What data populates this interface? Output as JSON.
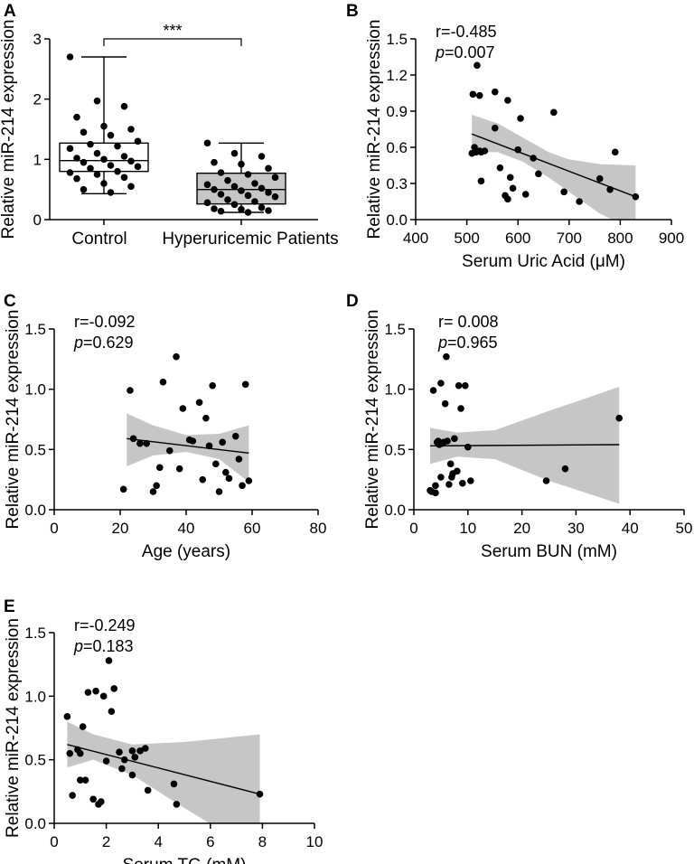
{
  "chart_data": [
    {
      "panel": "A",
      "type": "box",
      "categories": [
        "Control",
        "Hyperuricemic Patients"
      ],
      "ylabel": "Relative miR-214 expression",
      "ylim": [
        0,
        3
      ],
      "yticks": [
        0,
        1,
        2,
        3
      ],
      "significance": "***",
      "boxes": [
        {
          "min": 0.43,
          "q1": 0.8,
          "median": 0.98,
          "q3": 1.27,
          "max": 2.7
        },
        {
          "min": 0.12,
          "q1": 0.26,
          "median": 0.5,
          "q3": 0.77,
          "max": 1.27
        }
      ],
      "points": [
        [
          2.7,
          1.97,
          1.88,
          1.7,
          1.55,
          1.5,
          1.45,
          1.4,
          1.3,
          1.25,
          1.22,
          1.18,
          1.1,
          1.05,
          1.02,
          1.0,
          0.97,
          0.95,
          0.9,
          0.88,
          0.85,
          0.8,
          0.78,
          0.75,
          0.7,
          0.68,
          0.6,
          0.55,
          0.5,
          0.45
        ],
        [
          1.27,
          1.1,
          1.05,
          0.95,
          0.92,
          0.85,
          0.78,
          0.75,
          0.7,
          0.65,
          0.6,
          0.58,
          0.55,
          0.52,
          0.5,
          0.48,
          0.45,
          0.42,
          0.4,
          0.38,
          0.33,
          0.3,
          0.28,
          0.25,
          0.2,
          0.18,
          0.17,
          0.15,
          0.14,
          0.12
        ]
      ]
    },
    {
      "panel": "B",
      "type": "scatter",
      "xlabel": "Serum Uric Acid (μM)",
      "ylabel": "Relative miR-214 expression",
      "xlim": [
        400,
        900
      ],
      "ylim": [
        0,
        1.5
      ],
      "xticks": [
        400,
        500,
        600,
        700,
        800,
        900
      ],
      "yticks": [
        0.0,
        0.3,
        0.6,
        0.9,
        1.2,
        1.5
      ],
      "ytick_labels": [
        "0.0",
        "0.3",
        "0.6",
        "0.9",
        "1.2",
        "1.5"
      ],
      "r_text": "r=-0.485",
      "p_label": "p",
      "p_value": "=0.007",
      "fit": {
        "x": [
          510,
          830
        ],
        "y": [
          0.71,
          0.19
        ]
      },
      "band_upper": [
        [
          510,
          0.87
        ],
        [
          560,
          0.8
        ],
        [
          610,
          0.68
        ],
        [
          660,
          0.56
        ],
        [
          700,
          0.5
        ],
        [
          760,
          0.46
        ],
        [
          830,
          0.45
        ]
      ],
      "band_lower": [
        [
          510,
          0.56
        ],
        [
          560,
          0.56
        ],
        [
          610,
          0.48
        ],
        [
          660,
          0.35
        ],
        [
          700,
          0.23
        ],
        [
          760,
          0.05
        ],
        [
          830,
          -0.09
        ]
      ],
      "x": [
        520,
        512,
        525,
        555,
        580,
        515,
        525,
        518,
        528,
        605,
        528,
        510,
        555,
        565,
        615,
        585,
        630,
        670,
        640,
        535,
        575,
        600,
        720,
        690,
        580,
        590,
        780,
        790,
        760,
        830
      ],
      "y": [
        1.28,
        1.04,
        1.03,
        1.06,
        0.99,
        0.6,
        0.57,
        0.56,
        0.56,
        0.84,
        0.32,
        0.55,
        0.76,
        0.43,
        0.21,
        0.35,
        0.51,
        0.89,
        0.38,
        0.57,
        0.2,
        0.58,
        0.15,
        0.23,
        0.17,
        0.26,
        0.25,
        0.56,
        0.34,
        0.19
      ]
    },
    {
      "panel": "C",
      "type": "scatter",
      "xlabel": "Age (years)",
      "ylabel": "Relative miR-214 expression",
      "xlim": [
        0,
        80
      ],
      "ylim": [
        0,
        1.5
      ],
      "xticks": [
        0,
        20,
        40,
        60,
        80
      ],
      "yticks": [
        0.0,
        0.5,
        1.0,
        1.5
      ],
      "ytick_labels": [
        "0.0",
        "0.5",
        "1.0",
        "1.5"
      ],
      "r_text": "r=-0.092",
      "p_label": "p",
      "p_value": "=0.629",
      "fit": {
        "x": [
          22,
          59
        ],
        "y": [
          0.59,
          0.47
        ]
      },
      "band_upper": [
        [
          22,
          0.8
        ],
        [
          30,
          0.7
        ],
        [
          40,
          0.62
        ],
        [
          50,
          0.63
        ],
        [
          59,
          0.7
        ]
      ],
      "band_lower": [
        [
          22,
          0.36
        ],
        [
          30,
          0.45
        ],
        [
          40,
          0.48
        ],
        [
          50,
          0.42
        ],
        [
          59,
          0.23
        ]
      ],
      "x": [
        21,
        23,
        24,
        26,
        28,
        30,
        31,
        32,
        33,
        35,
        37,
        38,
        39,
        41,
        42,
        44,
        45,
        46,
        47,
        48,
        49,
        50,
        51,
        52,
        53,
        55,
        56,
        57,
        58,
        59
      ],
      "y": [
        0.17,
        0.99,
        0.59,
        0.55,
        0.55,
        0.15,
        0.2,
        0.35,
        1.06,
        0.49,
        1.27,
        0.34,
        0.84,
        0.58,
        0.57,
        0.89,
        0.25,
        0.76,
        0.53,
        1.03,
        0.38,
        0.15,
        0.56,
        0.31,
        0.26,
        0.61,
        0.42,
        0.2,
        1.04,
        0.24
      ]
    },
    {
      "panel": "D",
      "type": "scatter",
      "xlabel": "Serum BUN (mM)",
      "ylabel": "Relative miR-214 expression",
      "xlim": [
        0,
        50
      ],
      "ylim": [
        0,
        1.5
      ],
      "xticks": [
        0,
        10,
        20,
        30,
        40,
        50
      ],
      "yticks": [
        0.0,
        0.5,
        1.0,
        1.5
      ],
      "ytick_labels": [
        "0.0",
        "0.5",
        "1.0",
        "1.5"
      ],
      "r_text": "r= 0.008",
      "p_label": "p",
      "p_value": "=0.965",
      "fit": {
        "x": [
          3,
          38
        ],
        "y": [
          0.53,
          0.54
        ]
      },
      "band_upper": [
        [
          3,
          0.68
        ],
        [
          8,
          0.64
        ],
        [
          15,
          0.66
        ],
        [
          25,
          0.82
        ],
        [
          38,
          1.02
        ]
      ],
      "band_lower": [
        [
          3,
          0.38
        ],
        [
          8,
          0.44
        ],
        [
          15,
          0.42
        ],
        [
          25,
          0.24
        ],
        [
          38,
          0.05
        ]
      ],
      "x": [
        3,
        3.3,
        3.6,
        4,
        4,
        4.3,
        4.5,
        4.7,
        5,
        5,
        5.2,
        5.5,
        5.8,
        6,
        6.2,
        6.5,
        6.8,
        7,
        7.2,
        7.5,
        8,
        8.3,
        8.7,
        9,
        9.5,
        10,
        10.5,
        24.5,
        28,
        38
      ],
      "y": [
        0.16,
        0.15,
        0.99,
        0.14,
        0.2,
        0.56,
        0.57,
        0.54,
        0.27,
        1.05,
        0.55,
        0.56,
        0.88,
        1.27,
        0.57,
        0.21,
        0.38,
        0.27,
        0.3,
        0.59,
        0.32,
        1.03,
        0.84,
        0.22,
        1.03,
        0.52,
        0.24,
        0.24,
        0.34,
        0.76
      ]
    },
    {
      "panel": "E",
      "type": "scatter",
      "xlabel": "Serum TG (mM)",
      "ylabel": "Relative miR-214 expression",
      "xlim": [
        0,
        10
      ],
      "ylim": [
        0,
        1.5
      ],
      "xticks": [
        0,
        2,
        4,
        6,
        8,
        10
      ],
      "yticks": [
        0.0,
        0.5,
        1.0,
        1.5
      ],
      "ytick_labels": [
        "0.0",
        "0.5",
        "1.0",
        "1.5"
      ],
      "r_text": "r=-0.249",
      "p_label": "p",
      "p_value": "=0.183",
      "fit": {
        "x": [
          0.5,
          7.9
        ],
        "y": [
          0.62,
          0.23
        ]
      },
      "band_upper": [
        [
          0.5,
          0.8
        ],
        [
          1.5,
          0.7
        ],
        [
          3,
          0.62
        ],
        [
          5,
          0.64
        ],
        [
          7.9,
          0.7
        ]
      ],
      "band_lower": [
        [
          0.5,
          0.44
        ],
        [
          1.5,
          0.5
        ],
        [
          3,
          0.38
        ],
        [
          5,
          0.12
        ],
        [
          7.9,
          -0.24
        ]
      ],
      "x": [
        0.5,
        0.6,
        0.7,
        0.9,
        1.0,
        1.0,
        1.1,
        1.2,
        1.3,
        1.5,
        1.6,
        1.7,
        1.8,
        1.9,
        2.0,
        2.1,
        2.2,
        2.3,
        2.5,
        2.6,
        2.7,
        3.0,
        3.0,
        3.1,
        3.3,
        3.5,
        3.6,
        4.6,
        4.7,
        7.9
      ],
      "y": [
        0.84,
        0.55,
        0.22,
        0.58,
        0.55,
        0.34,
        0.76,
        0.34,
        1.03,
        0.19,
        1.04,
        0.15,
        0.17,
        1.0,
        0.49,
        1.28,
        0.88,
        1.06,
        0.56,
        0.43,
        0.5,
        0.38,
        0.57,
        0.52,
        0.57,
        0.59,
        0.26,
        0.31,
        0.15,
        0.23
      ]
    }
  ]
}
